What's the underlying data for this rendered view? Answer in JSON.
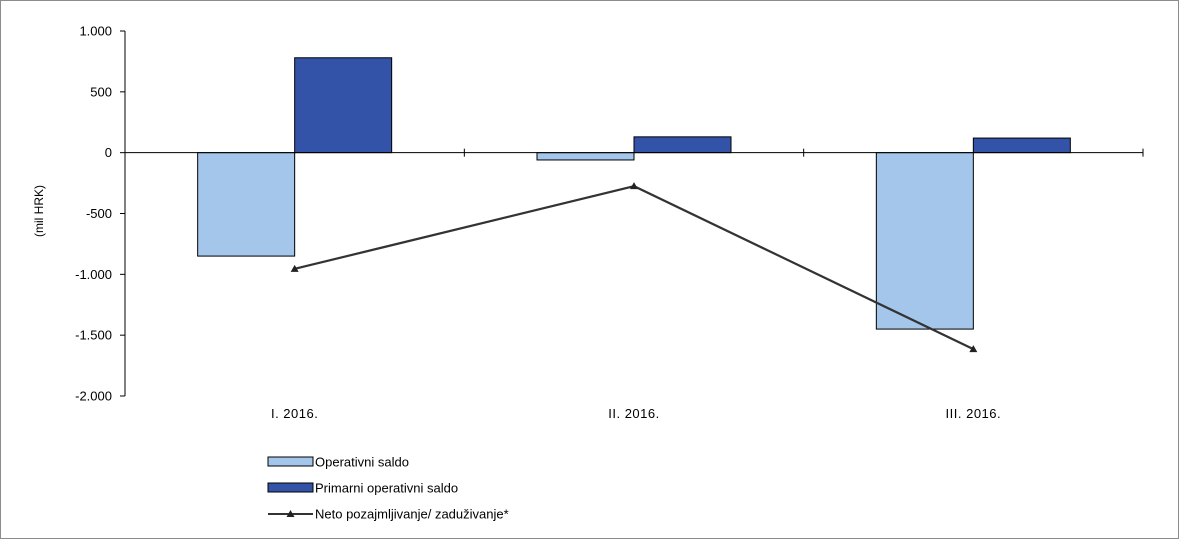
{
  "chart_data": {
    "type": "bar",
    "ylabel": "(mil HRK)",
    "ylim": [
      -2000,
      1000
    ],
    "yticks": [
      {
        "value": 1000,
        "label": "1.000"
      },
      {
        "value": 500,
        "label": "500"
      },
      {
        "value": 0,
        "label": "0"
      },
      {
        "value": -500,
        "label": "-500"
      },
      {
        "value": -1000,
        "label": "-1.000"
      },
      {
        "value": -1500,
        "label": "-1.500"
      },
      {
        "value": -2000,
        "label": "-2.000"
      }
    ],
    "categories": [
      "I. 2016.",
      "II. 2016.",
      "III. 2016."
    ],
    "series": [
      {
        "name": "Operativni saldo",
        "kind": "bar",
        "color": "#a3c6ea",
        "values": [
          -850,
          -60,
          -1450
        ]
      },
      {
        "name": "Primarni operativni saldo",
        "kind": "bar",
        "color": "#3353a8",
        "values": [
          780,
          130,
          120
        ]
      },
      {
        "name": "Neto pozajmljivanje/ zaduživanje*",
        "kind": "line",
        "color": "#333333",
        "marker": "triangle",
        "values": [
          -955,
          -275,
          -1615
        ]
      }
    ],
    "grid": false,
    "legend": "bottom-left"
  }
}
